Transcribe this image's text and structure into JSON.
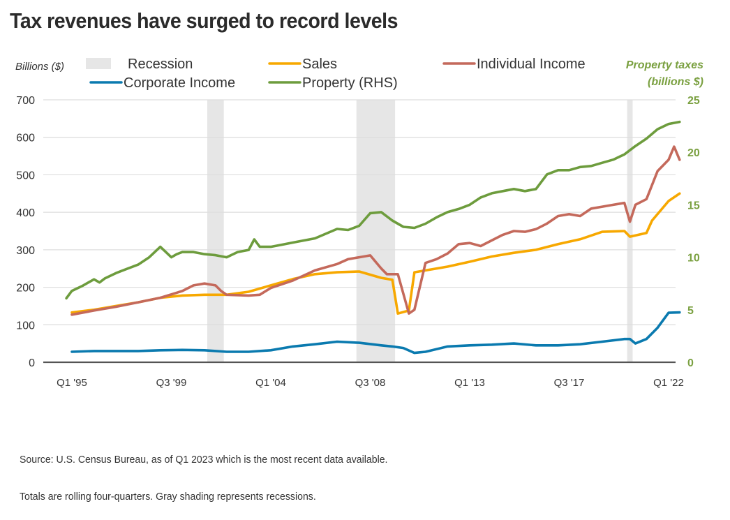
{
  "title": "Tax revenues have surged to record levels",
  "footnotes": {
    "source": "Source: U.S. Census Bureau, as of Q1 2023 which is the most recent data available.",
    "note": "Totals are rolling four-quarters. Gray shading represents recessions."
  },
  "colors": {
    "sales": "#f7a800",
    "individual_income": "#c4695b",
    "corporate_income": "#0a7aaf",
    "property": "#6d9c3d",
    "recession": "#e6e6e6",
    "grid": "#dddddd",
    "axis": "#555555",
    "right_axis_text": "#7aa040",
    "text": "#333333"
  },
  "chart_data": {
    "type": "line",
    "title": "Tax revenues have surged to record levels",
    "ylabel": "Billions ($)",
    "ylabel_right": [
      "Property taxes",
      "(billions  $)"
    ],
    "ylim": [
      0,
      700
    ],
    "ylim_right": [
      0,
      25
    ],
    "yticks": [
      0,
      100,
      200,
      300,
      400,
      500,
      600,
      700
    ],
    "yticks_right": [
      0,
      5,
      10,
      15,
      20,
      25
    ],
    "x_unit": "quarters since Q1 1995",
    "xlim": [
      0,
      108
    ],
    "xticks": [
      {
        "q": 0,
        "label": "Q1 '95"
      },
      {
        "q": 18,
        "label": "Q3 '99"
      },
      {
        "q": 36,
        "label": "Q1 '04"
      },
      {
        "q": 54,
        "label": "Q3 '08"
      },
      {
        "q": 72,
        "label": "Q1 '13"
      },
      {
        "q": 90,
        "label": "Q3 '17"
      },
      {
        "q": 108,
        "label": "Q1 '22"
      }
    ],
    "grid": true,
    "legend": [
      {
        "key": "recession",
        "label": "Recession",
        "kind": "box"
      },
      {
        "key": "sales",
        "label": "Sales",
        "kind": "line"
      },
      {
        "key": "individual_income",
        "label": "Individual Income",
        "kind": "line"
      },
      {
        "key": "corporate_income",
        "label": "Corporate Income",
        "kind": "line"
      },
      {
        "key": "property",
        "label": "Property (RHS)",
        "kind": "line"
      }
    ],
    "legend_position": "top",
    "recessions": [
      {
        "start": 24.5,
        "end": 27.5
      },
      {
        "start": 51.5,
        "end": 58.5
      },
      {
        "start": 100.5,
        "end": 101.5
      }
    ],
    "series": [
      {
        "key": "sales",
        "name": "Sales",
        "axis": "left",
        "x": [
          0,
          4,
          8,
          12,
          16,
          20,
          24,
          28,
          32,
          36,
          40,
          44,
          48,
          52,
          56,
          58,
          59,
          61,
          62,
          64,
          68,
          72,
          76,
          80,
          84,
          88,
          92,
          96,
          100,
          101,
          104,
          105,
          108,
          110
        ],
        "y": [
          133,
          140,
          150,
          160,
          172,
          178,
          180,
          180,
          188,
          205,
          222,
          235,
          240,
          242,
          225,
          220,
          130,
          138,
          240,
          245,
          255,
          268,
          282,
          292,
          300,
          315,
          328,
          348,
          350,
          335,
          345,
          378,
          430,
          450
        ]
      },
      {
        "key": "individual_income",
        "name": "Individual Income",
        "axis": "left",
        "x": [
          0,
          4,
          8,
          12,
          16,
          20,
          22,
          24,
          26,
          27,
          28,
          32,
          34,
          36,
          40,
          44,
          48,
          50,
          52,
          54,
          56,
          57,
          58,
          59,
          61,
          62,
          64,
          66,
          68,
          70,
          72,
          74,
          76,
          78,
          80,
          82,
          84,
          86,
          88,
          90,
          92,
          94,
          96,
          98,
          100,
          101,
          102,
          104,
          106,
          108,
          109,
          110
        ],
        "y": [
          127,
          138,
          148,
          160,
          172,
          190,
          205,
          210,
          205,
          190,
          180,
          178,
          180,
          198,
          218,
          245,
          262,
          275,
          280,
          285,
          250,
          235,
          235,
          235,
          130,
          140,
          265,
          275,
          290,
          315,
          318,
          310,
          325,
          340,
          350,
          348,
          355,
          370,
          390,
          395,
          390,
          410,
          415,
          420,
          425,
          375,
          420,
          435,
          510,
          540,
          575,
          540
        ]
      },
      {
        "key": "corporate_income",
        "name": "Corporate Income",
        "axis": "left",
        "x": [
          0,
          4,
          8,
          12,
          16,
          20,
          24,
          28,
          32,
          36,
          40,
          44,
          48,
          52,
          56,
          58,
          60,
          62,
          64,
          68,
          72,
          76,
          80,
          84,
          88,
          92,
          96,
          100,
          101,
          102,
          104,
          106,
          108,
          110
        ],
        "y": [
          28,
          30,
          30,
          30,
          32,
          33,
          32,
          28,
          28,
          32,
          42,
          48,
          55,
          52,
          45,
          42,
          38,
          25,
          28,
          42,
          45,
          47,
          50,
          45,
          45,
          48,
          55,
          62,
          62,
          50,
          62,
          92,
          132,
          133
        ]
      },
      {
        "key": "property",
        "name": "Property (RHS)",
        "axis": "right",
        "x": [
          -1,
          0,
          2,
          4,
          5,
          6,
          8,
          10,
          12,
          14,
          16,
          18,
          19,
          20,
          22,
          24,
          26,
          28,
          30,
          32,
          33,
          34,
          36,
          38,
          40,
          44,
          48,
          50,
          52,
          54,
          56,
          58,
          60,
          62,
          64,
          66,
          68,
          70,
          72,
          74,
          76,
          78,
          80,
          82,
          84,
          86,
          88,
          90,
          92,
          94,
          96,
          98,
          100,
          102,
          104,
          106,
          108,
          110
        ],
        "y": [
          6.1,
          6.8,
          7.3,
          7.9,
          7.6,
          8.0,
          8.5,
          8.9,
          9.3,
          10.0,
          11.0,
          10.0,
          10.3,
          10.5,
          10.5,
          10.3,
          10.2,
          10.0,
          10.5,
          10.7,
          11.7,
          11.0,
          11.0,
          11.2,
          11.4,
          11.8,
          12.7,
          12.6,
          13.0,
          14.2,
          14.3,
          13.5,
          12.9,
          12.8,
          13.2,
          13.8,
          14.3,
          14.6,
          15.0,
          15.7,
          16.1,
          16.3,
          16.5,
          16.3,
          16.5,
          17.9,
          18.3,
          18.3,
          18.6,
          18.7,
          19.0,
          19.3,
          19.8,
          20.6,
          21.3,
          22.2,
          22.7,
          22.9
        ]
      }
    ]
  }
}
